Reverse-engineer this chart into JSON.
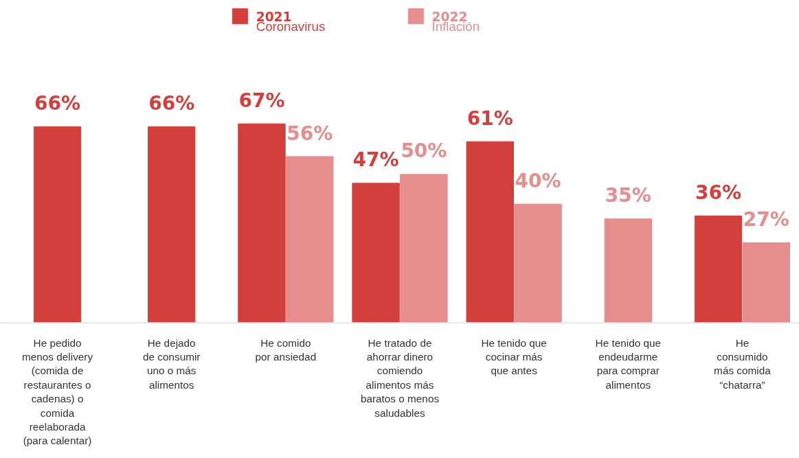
{
  "chart_data": {
    "type": "bar",
    "categories": [
      "He pedido\nmenos delivery\n(comida de\nrestaurantes o\ncadenas) o\ncomida\nreelaborada\n(para calentar)",
      "He dejado\nde consumir\nuno o más\nalimentos",
      "He comido\npor ansiedad",
      "He tratado de\nahorrar dinero\ncomiendo\nalimentos más\nbaratos o menos\nsaludables",
      "He tenido que\ncocinar más\nque antes",
      "He tenido que\nendeudarme\npara comprar\nalimentos",
      "He\nconsumido\nmás comida\n“chatarra”"
    ],
    "series": [
      {
        "name": "2021\nCoronavirus",
        "color": "#d33f3a",
        "values": [
          66,
          66,
          67,
          47,
          61,
          null,
          36
        ],
        "value_labels": [
          "66%",
          "66%",
          "67%",
          "47%",
          "61%",
          null,
          "36%"
        ]
      },
      {
        "name": "2022\nInflación",
        "color": "#e68d8d",
        "values": [
          null,
          null,
          56,
          50,
          40,
          35,
          27
        ],
        "value_labels": [
          null,
          null,
          "56%",
          "50%",
          "40%",
          "35%",
          "27%"
        ]
      }
    ],
    "legend": "top",
    "grid": false
  }
}
